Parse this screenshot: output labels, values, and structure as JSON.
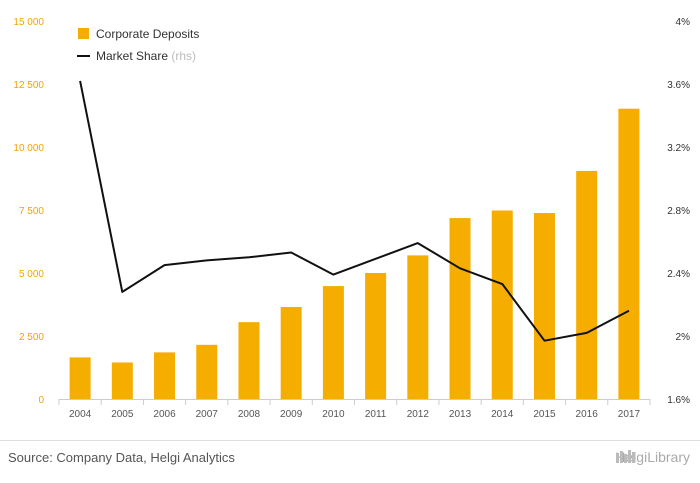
{
  "chart_data": {
    "type": "bar",
    "categories": [
      "2004",
      "2005",
      "2006",
      "2007",
      "2008",
      "2009",
      "2010",
      "2011",
      "2012",
      "2013",
      "2014",
      "2015",
      "2016",
      "2017"
    ],
    "series": [
      {
        "name": "Corporate Deposits",
        "type": "bar",
        "axis": "left",
        "color": "#f5ad00",
        "values": [
          1650,
          1450,
          1850,
          2150,
          3050,
          3650,
          4480,
          5000,
          5700,
          7180,
          7480,
          7380,
          9050,
          11520
        ]
      },
      {
        "name": "Market Share",
        "name_note": "(rhs)",
        "type": "line",
        "axis": "right",
        "color": "#111111",
        "values": [
          3.62,
          2.28,
          2.45,
          2.48,
          2.5,
          2.53,
          2.39,
          2.49,
          2.59,
          2.43,
          2.33,
          1.97,
          2.02,
          2.16
        ]
      }
    ],
    "y_left": {
      "min": 0,
      "max": 15000,
      "ticks": [
        "0",
        "2 500",
        "5 000",
        "7 500",
        "10 000",
        "12 500",
        "15 000"
      ]
    },
    "y_right": {
      "min": 1.6,
      "max": 4.0,
      "ticks": [
        "1.6%",
        "2%",
        "2.4%",
        "2.8%",
        "3.2%",
        "3.6%",
        "4%"
      ]
    },
    "legend_position": "top-left",
    "grid": false
  },
  "footer": {
    "source": "Source: Company Data, Helgi Analytics",
    "brand": "HelgiLibrary"
  }
}
